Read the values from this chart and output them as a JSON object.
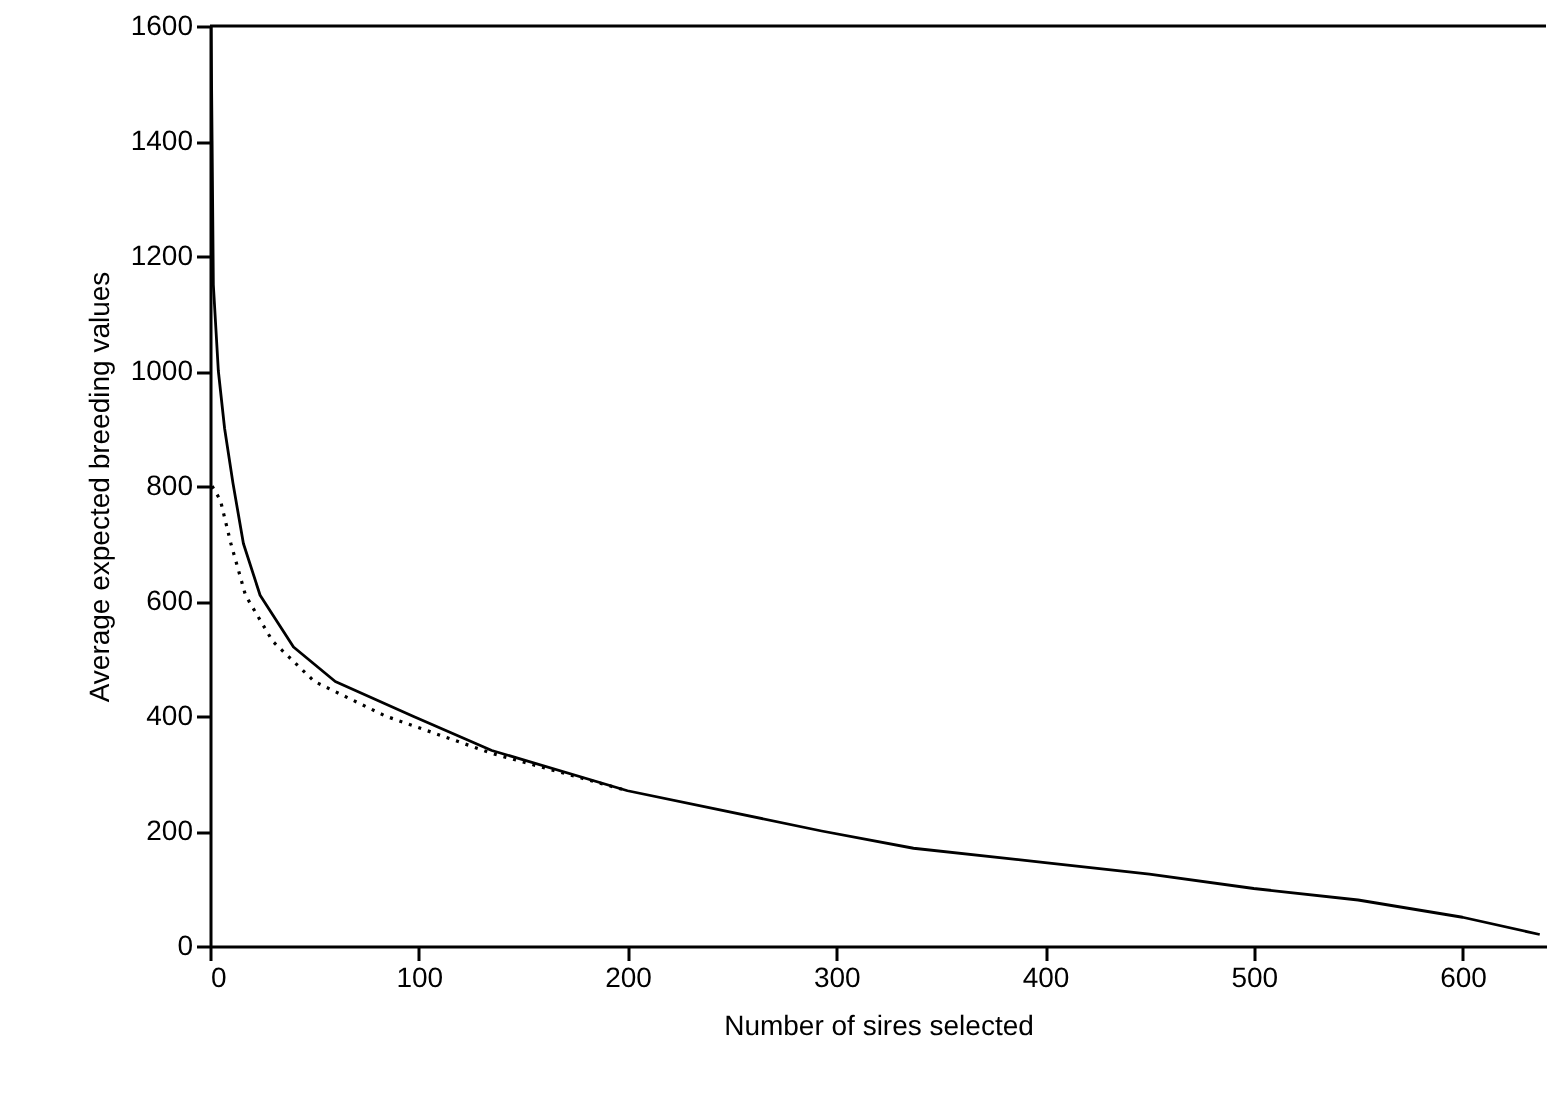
{
  "chart_data": {
    "type": "line",
    "xlabel": "Number of sires selected",
    "ylabel": "Average expected breeding values",
    "xlim": [
      0,
      640
    ],
    "ylim": [
      0,
      1600
    ],
    "xticks": [
      0,
      100,
      200,
      300,
      400,
      500,
      600
    ],
    "yticks": [
      0,
      200,
      400,
      600,
      800,
      1000,
      1200,
      1400,
      1600
    ],
    "grid": false,
    "series": [
      {
        "color": "#000000",
        "line_style": "solid",
        "x": [
          0.5,
          1,
          1.6,
          4,
          7,
          11,
          16,
          24,
          40,
          60,
          97,
          135,
          200,
          293,
          337,
          400,
          450,
          500,
          550,
          600,
          637
        ],
        "values": [
          1600,
          1400,
          1150,
          1000,
          900,
          805,
          700,
          610,
          520,
          460,
          400,
          340,
          270,
          200,
          170,
          145,
          125,
          100,
          80,
          50,
          20
        ]
      },
      {
        "color": "#000000",
        "line_style": "dotted",
        "x": [
          1,
          5,
          10,
          17,
          30,
          50,
          84,
          135,
          150,
          200
        ],
        "values": [
          800,
          775,
          700,
          610,
          530,
          460,
          400,
          335,
          320,
          270
        ]
      }
    ]
  }
}
